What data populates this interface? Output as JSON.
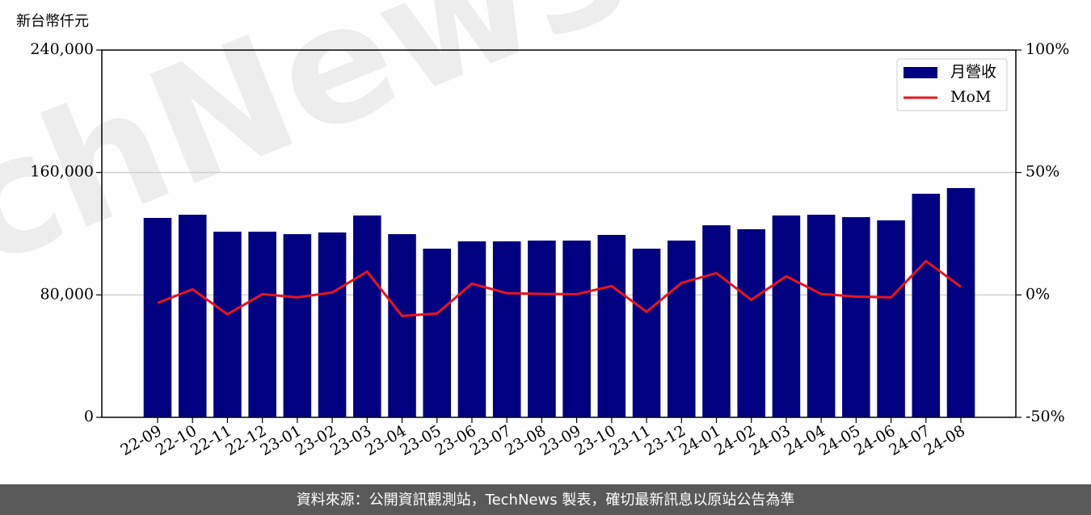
{
  "chart_data": {
    "type": "bar",
    "y_label": "新台幣仟元",
    "watermark": "TechNews",
    "footer": "資料來源：公開資訊觀測站，TechNews 製表，確切最新訊息以原站公告為準",
    "categories": [
      "22-09",
      "22-10",
      "22-11",
      "22-12",
      "23-01",
      "23-02",
      "23-03",
      "23-04",
      "23-05",
      "23-06",
      "23-07",
      "23-08",
      "23-09",
      "23-10",
      "23-11",
      "23-12",
      "24-01",
      "24-02",
      "24-03",
      "24-04",
      "24-05",
      "24-06",
      "24-07",
      "24-08"
    ],
    "series": [
      {
        "name": "月營收",
        "color": "#000080",
        "type": "bar",
        "values": [
          130300,
          132400,
          121300,
          121300,
          119700,
          120800,
          131900,
          119700,
          110200,
          115000,
          115000,
          115500,
          115500,
          119200,
          110200,
          115500,
          125500,
          122900,
          131900,
          132400,
          130800,
          128700,
          146100,
          149800
        ]
      },
      {
        "name": "MoM",
        "color": "#e8141c",
        "type": "line",
        "axis": "y2",
        "values": [
          -3.3,
          2.3,
          -7.9,
          0.3,
          -1.0,
          1.0,
          9.5,
          -8.6,
          -7.6,
          4.6,
          0.7,
          0.4,
          0.3,
          3.6,
          -6.9,
          4.9,
          8.9,
          -2.0,
          7.6,
          0.4,
          -0.7,
          -1.0,
          13.8,
          3.3
        ]
      }
    ],
    "ylim": [
      0,
      240000
    ],
    "yticks": [
      0,
      {
        "value": 80000,
        "label": "80,000"
      },
      {
        "value": 160000,
        "label": "160,000"
      },
      {
        "value": 240000,
        "label": "240,000"
      }
    ],
    "y2lim": [
      -50,
      100
    ],
    "y2ticks": [
      {
        "value": -50,
        "label": "-50%"
      },
      {
        "value": 0,
        "label": "0%"
      },
      {
        "value": 50,
        "label": "50%"
      },
      {
        "value": 100,
        "label": "100%"
      }
    ],
    "grid": true,
    "legend": "upper right"
  }
}
